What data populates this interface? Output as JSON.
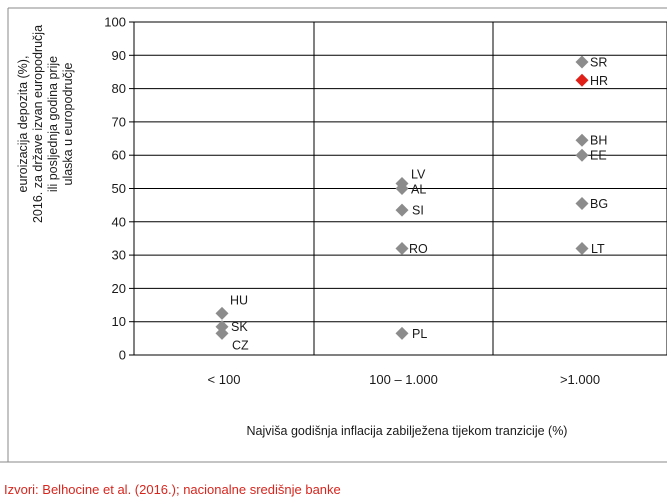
{
  "chart_data": {
    "type": "scatter",
    "ylabel_lines": [
      "euroizacija depozita (%),",
      "2016. za države izvan europodručja",
      "ili posljednja godina prije",
      "ulaska u europodručje"
    ],
    "xlabel": "Najviša godišnja inflacija zabilježena tijekom tranzicije (%)",
    "categories": [
      "< 100",
      "100 – 1.000",
      ">1.000"
    ],
    "ylim": [
      0,
      100
    ],
    "yticks": [
      0,
      10,
      20,
      30,
      40,
      50,
      60,
      70,
      80,
      90,
      100
    ],
    "grid": true,
    "points": [
      {
        "label": "HU",
        "category": 0,
        "y": 12.5,
        "highlight": false
      },
      {
        "label": "SK",
        "category": 0,
        "y": 8.5,
        "highlight": false
      },
      {
        "label": "CZ",
        "category": 0,
        "y": 6.5,
        "highlight": false
      },
      {
        "label": "LV",
        "category": 1,
        "y": 51.5,
        "highlight": false
      },
      {
        "label": "AL",
        "category": 1,
        "y": 50,
        "highlight": false
      },
      {
        "label": "SI",
        "category": 1,
        "y": 43.5,
        "highlight": false
      },
      {
        "label": "RO",
        "category": 1,
        "y": 32,
        "highlight": false
      },
      {
        "label": "PL",
        "category": 1,
        "y": 6.5,
        "highlight": false
      },
      {
        "label": "SR",
        "category": 2,
        "y": 88,
        "highlight": false
      },
      {
        "label": "HR",
        "category": 2,
        "y": 82.5,
        "highlight": true
      },
      {
        "label": "BH",
        "category": 2,
        "y": 64.5,
        "highlight": false
      },
      {
        "label": "EE",
        "category": 2,
        "y": 60,
        "highlight": false
      },
      {
        "label": "BG",
        "category": 2,
        "y": 45.5,
        "highlight": false
      },
      {
        "label": "LT",
        "category": 2,
        "y": 32,
        "highlight": false
      }
    ]
  },
  "colors": {
    "marker": "#8c8c8c",
    "highlight": "#e02018",
    "grid": "#000000",
    "source_text": "#d7261e"
  },
  "source": "Izvori: Belhocine et al. (2016.); nacionalne središnje banke"
}
